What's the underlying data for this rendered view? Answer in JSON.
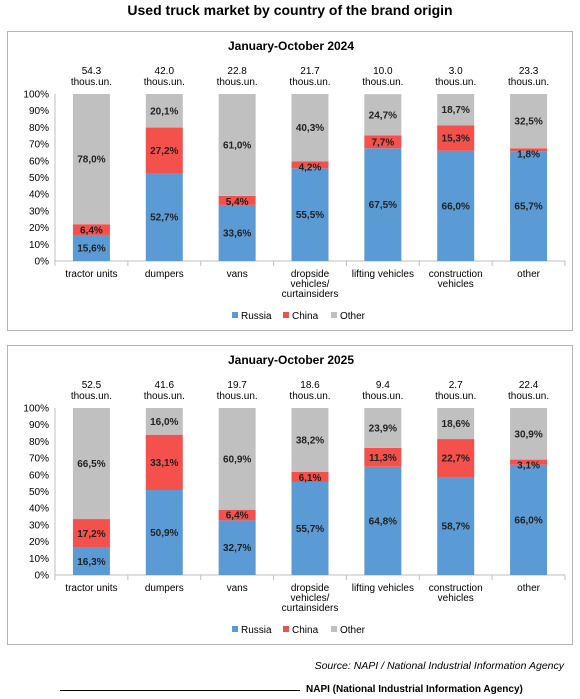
{
  "title": "Used truck market by country of the brand origin",
  "source": "Source: NAPI / National Industrial Information Agency",
  "footer": "NAPI (National Industrial Information Agency)",
  "colors": {
    "Russia": "#5b9bd5",
    "China": "#f4504c",
    "Other": "#c0c0c0"
  },
  "chart_data": [
    {
      "type": "bar",
      "stacked": "percent",
      "title": "January-October 2024",
      "categories": [
        [
          "tractor units"
        ],
        [
          "dumpers"
        ],
        [
          "vans"
        ],
        [
          "dropside",
          "vehicles/",
          "curtainsiders"
        ],
        [
          "lifting vehicles"
        ],
        [
          "construction",
          "vehicles"
        ],
        [
          "other"
        ]
      ],
      "totals": [
        "54.3",
        "42.0",
        "22.8",
        "21.7",
        "10.0",
        "3.0",
        "23.3"
      ],
      "total_unit": "thous.un.",
      "yticks": [
        "0%",
        "10%",
        "20%",
        "30%",
        "40%",
        "50%",
        "60%",
        "70%",
        "80%",
        "90%",
        "100%"
      ],
      "ylim": [
        0,
        100
      ],
      "legend_position": "bottom",
      "series": [
        {
          "name": "Russia",
          "values": [
            15.6,
            52.7,
            33.6,
            55.5,
            67.5,
            66.0,
            65.7
          ],
          "labels": [
            "15,6%",
            "52,7%",
            "33,6%",
            "55,5%",
            "67,5%",
            "66,0%",
            "65,7%"
          ]
        },
        {
          "name": "China",
          "values": [
            6.4,
            27.2,
            5.4,
            4.2,
            7.7,
            15.3,
            1.8
          ],
          "labels": [
            "6,4%",
            "27,2%",
            "5,4%",
            "4,2%",
            "7,7%",
            "15,3%",
            "1,8%"
          ]
        },
        {
          "name": "Other",
          "values": [
            78.0,
            20.1,
            61.0,
            40.3,
            24.7,
            18.7,
            32.5
          ],
          "labels": [
            "78,0%",
            "20,1%",
            "61,0%",
            "40,3%",
            "24,7%",
            "18,7%",
            "32,5%"
          ]
        }
      ]
    },
    {
      "type": "bar",
      "stacked": "percent",
      "title": "January-October 2025",
      "categories": [
        [
          "tractor units"
        ],
        [
          "dumpers"
        ],
        [
          "vans"
        ],
        [
          "dropside",
          "vehicles/",
          "curtainsiders"
        ],
        [
          "lifting vehicles"
        ],
        [
          "construction",
          "vehicles"
        ],
        [
          "other"
        ]
      ],
      "totals": [
        "52.5",
        "41.6",
        "19.7",
        "18.6",
        "9.4",
        "2.7",
        "22.4"
      ],
      "total_unit": "thous.un.",
      "yticks": [
        "0%",
        "10%",
        "20%",
        "30%",
        "40%",
        "50%",
        "60%",
        "70%",
        "80%",
        "90%",
        "100%"
      ],
      "ylim": [
        0,
        100
      ],
      "legend_position": "bottom",
      "series": [
        {
          "name": "Russia",
          "values": [
            16.3,
            50.9,
            32.7,
            55.7,
            64.8,
            58.7,
            66.0
          ],
          "labels": [
            "16,3%",
            "50,9%",
            "32,7%",
            "55,7%",
            "64,8%",
            "58,7%",
            "66,0%"
          ]
        },
        {
          "name": "China",
          "values": [
            17.2,
            33.1,
            6.4,
            6.1,
            11.3,
            22.7,
            3.1
          ],
          "labels": [
            "17,2%",
            "33,1%",
            "6,4%",
            "6,1%",
            "11,3%",
            "22,7%",
            "3,1%"
          ]
        },
        {
          "name": "Other",
          "values": [
            66.5,
            16.0,
            60.9,
            38.2,
            23.9,
            18.6,
            30.9
          ],
          "labels": [
            "66,5%",
            "16,0%",
            "60,9%",
            "38,2%",
            "23,9%",
            "18,6%",
            "30,9%"
          ]
        }
      ]
    }
  ]
}
